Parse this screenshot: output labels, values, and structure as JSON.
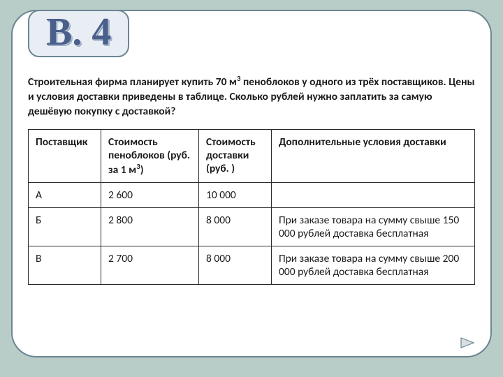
{
  "title": "В. 4",
  "problem_html": "Строительная фирма планирует купить 70 м<sup>3</sup> пеноблоков у одного из трёх поставщиков. Цены и условия доставки приведены в таблице. Сколько рублей нужно заплатить за самую дешёвую покупку с доставкой?",
  "table": {
    "headers": {
      "supplier": "Поставщик",
      "cost_html": "Стоимость пеноблоков (руб. за 1 м<sup>3</sup>)",
      "delivery": "Стоимость доставки (руб. )",
      "conditions": "Дополнительные условия доставки"
    },
    "rows": [
      {
        "supplier": "А",
        "cost": "2 600",
        "delivery": "10 000",
        "conditions": ""
      },
      {
        "supplier": "Б",
        "cost": "2 800",
        "delivery": "8 000",
        "conditions": "При заказе товара на сумму свыше 150 000 рублей доставка бесплатная"
      },
      {
        "supplier": "В",
        "cost": "2 700",
        "delivery": "8 000",
        "conditions": "При заказе товара на сумму свыше 200 000 рублей доставка бесплатная"
      }
    ]
  },
  "colors": {
    "page_bg": "#b8cdc8",
    "card_bg": "#ffffff",
    "card_border": "#6b8693",
    "title_box_bg": "#e9eef4",
    "title_text": "#4a5f8a",
    "text": "#1a1a1a",
    "arrow_fill": "#d9dfe0",
    "arrow_stroke": "#6b8693"
  }
}
